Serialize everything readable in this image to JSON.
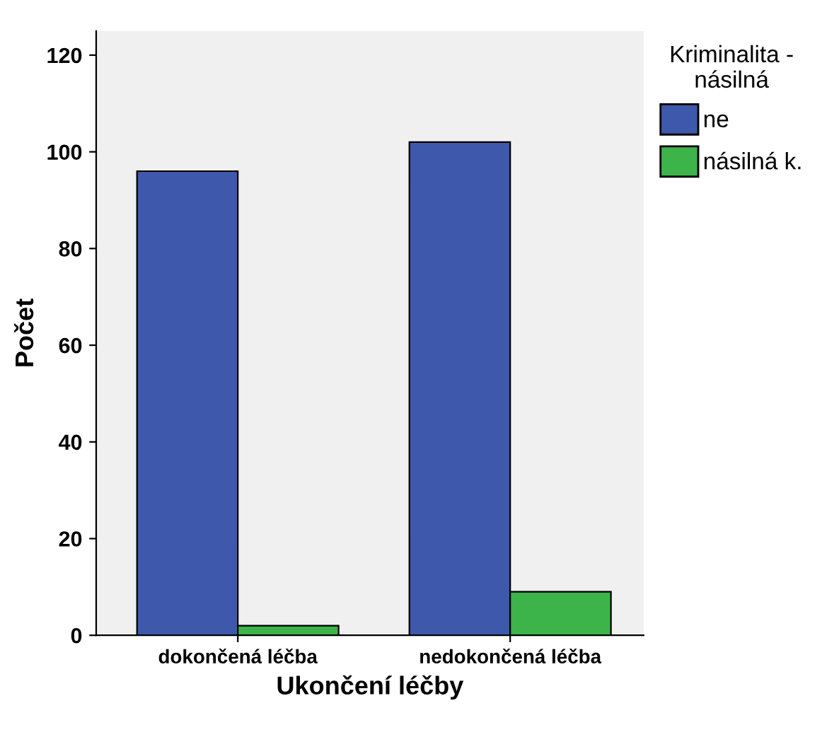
{
  "chart_data": {
    "type": "bar",
    "xlabel": "Ukončení léčby",
    "ylabel": "Počet",
    "legend_title": "Kriminalita -\nnásilná",
    "categories": [
      "dokončená léčba",
      "nedokončená léčba"
    ],
    "series": [
      {
        "name": "ne",
        "color": "#3e58ac",
        "values": [
          96,
          102
        ]
      },
      {
        "name": "násilná k.",
        "color": "#3cb44a",
        "values": [
          2,
          9
        ]
      }
    ],
    "ylim": [
      0,
      125
    ],
    "yticks": [
      0,
      20,
      40,
      60,
      80,
      100,
      120
    ],
    "grid": false,
    "legend": "right"
  }
}
